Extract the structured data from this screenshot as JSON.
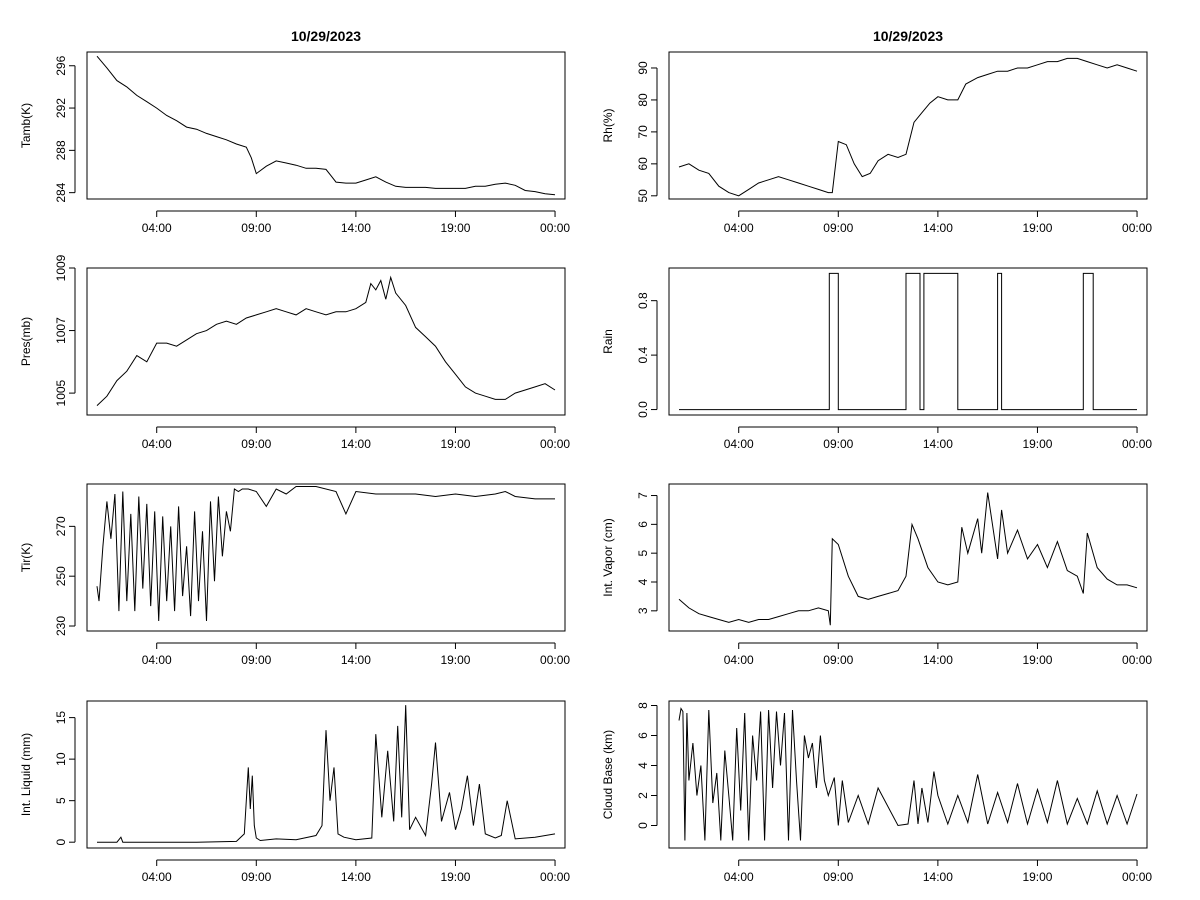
{
  "figure": {
    "titles": [
      "10/29/2023",
      "10/29/2023"
    ]
  },
  "chart_data": [
    {
      "type": "line",
      "ylabel": "Tamb(K)",
      "title": "10/29/2023",
      "xticks": [
        "04:00",
        "09:00",
        "14:00",
        "19:00",
        "00:00"
      ],
      "xtick_hours": [
        4,
        9,
        14,
        19,
        24
      ],
      "x_hours": [
        1,
        1.5,
        2,
        2.5,
        3,
        3.5,
        4,
        4.5,
        5,
        5.5,
        6,
        6.5,
        7,
        7.5,
        8,
        8.5,
        8.75,
        9,
        9.5,
        10,
        10.5,
        11,
        11.5,
        12,
        12.5,
        12.75,
        13,
        13.5,
        14,
        14.5,
        15,
        15.5,
        16,
        16.5,
        17,
        17.5,
        18,
        18.5,
        19,
        19.5,
        20,
        20.5,
        21,
        21.5,
        22,
        22.5,
        23,
        23.5,
        24
      ],
      "y": [
        296.9,
        295.8,
        294.6,
        294.0,
        293.2,
        292.6,
        292.0,
        291.3,
        290.8,
        290.2,
        290.0,
        289.6,
        289.3,
        289.0,
        288.6,
        288.3,
        287.3,
        285.8,
        286.5,
        287.0,
        286.8,
        286.6,
        286.3,
        286.3,
        286.2,
        285.6,
        285.0,
        284.9,
        284.9,
        285.2,
        285.5,
        285.0,
        284.6,
        284.5,
        284.5,
        284.5,
        284.4,
        284.4,
        284.4,
        284.4,
        284.6,
        284.6,
        284.8,
        284.9,
        284.7,
        284.2,
        284.1,
        283.9,
        283.8
      ],
      "ylim": [
        283.4,
        297.3
      ],
      "yticks": [
        284,
        288,
        292,
        296
      ]
    },
    {
      "type": "line",
      "ylabel": "Rh(%)",
      "title": "10/29/2023",
      "xticks": [
        "04:00",
        "09:00",
        "14:00",
        "19:00",
        "00:00"
      ],
      "xtick_hours": [
        4,
        9,
        14,
        19,
        24
      ],
      "x_hours": [
        1,
        1.5,
        2,
        2.5,
        3,
        3.5,
        4,
        4.5,
        5,
        5.5,
        6,
        6.5,
        7,
        7.5,
        8,
        8.5,
        8.7,
        9,
        9.4,
        9.8,
        10.2,
        10.6,
        11,
        11.5,
        12,
        12.4,
        12.8,
        13.2,
        13.6,
        14,
        14.5,
        15,
        15.4,
        16,
        16.5,
        17,
        17.5,
        18,
        18.5,
        19,
        19.5,
        20,
        20.5,
        21,
        21.5,
        22,
        22.5,
        23,
        23.5,
        24
      ],
      "y": [
        59,
        60,
        58,
        57,
        53,
        51,
        50,
        52,
        54,
        55,
        56,
        55,
        54,
        53,
        52,
        51,
        51,
        67,
        66,
        60,
        56,
        57,
        61,
        63,
        62,
        63,
        73,
        76,
        79,
        81,
        80,
        80,
        85,
        87,
        88,
        89,
        89,
        90,
        90,
        91,
        92,
        92,
        93,
        93,
        92,
        91,
        90,
        91,
        90,
        89
      ],
      "ylim": [
        49,
        95
      ],
      "yticks": [
        50,
        60,
        70,
        80,
        90
      ]
    },
    {
      "type": "line",
      "ylabel": "Pres(mb)",
      "xticks": [
        "04:00",
        "09:00",
        "14:00",
        "19:00",
        "00:00"
      ],
      "xtick_hours": [
        4,
        9,
        14,
        19,
        24
      ],
      "x_hours": [
        1,
        1.5,
        2,
        2.5,
        3,
        3.5,
        4,
        4.5,
        5,
        5.5,
        6,
        6.5,
        7,
        7.5,
        8,
        8.5,
        9,
        9.5,
        10,
        10.5,
        11,
        11.5,
        12,
        12.5,
        13,
        13.5,
        14,
        14.5,
        14.75,
        15,
        15.25,
        15.5,
        15.75,
        16,
        16.5,
        17,
        17.5,
        18,
        18.5,
        19,
        19.5,
        20,
        20.5,
        21,
        21.5,
        22,
        22.5,
        23,
        23.5,
        24
      ],
      "y": [
        1004.6,
        1004.9,
        1005.4,
        1005.7,
        1006.2,
        1006.0,
        1006.6,
        1006.6,
        1006.5,
        1006.7,
        1006.9,
        1007.0,
        1007.2,
        1007.3,
        1007.2,
        1007.4,
        1007.5,
        1007.6,
        1007.7,
        1007.6,
        1007.5,
        1007.7,
        1007.6,
        1007.5,
        1007.6,
        1007.6,
        1007.7,
        1007.9,
        1008.5,
        1008.3,
        1008.6,
        1008.0,
        1008.7,
        1008.2,
        1007.8,
        1007.1,
        1006.8,
        1006.5,
        1006.0,
        1005.6,
        1005.2,
        1005.0,
        1004.9,
        1004.8,
        1004.8,
        1005.0,
        1005.1,
        1005.2,
        1005.3,
        1005.1
      ],
      "ylim": [
        1004.3,
        1009.0
      ],
      "yticks": [
        1005,
        1007,
        1009
      ]
    },
    {
      "type": "step",
      "ylabel": "Rain",
      "xticks": [
        "04:00",
        "09:00",
        "14:00",
        "19:00",
        "00:00"
      ],
      "xtick_hours": [
        4,
        9,
        14,
        19,
        24
      ],
      "x_hours": [
        1,
        8.55,
        8.55,
        9.0,
        9.0,
        12.4,
        12.4,
        13.1,
        13.1,
        13.3,
        13.3,
        15.0,
        15.0,
        17.0,
        17.0,
        17.2,
        17.2,
        21.3,
        21.3,
        21.8,
        21.8,
        23.1,
        23.1,
        24
      ],
      "y": [
        0,
        0,
        1,
        1,
        0,
        0,
        1,
        1,
        0,
        0,
        1,
        1,
        0,
        0,
        1,
        1,
        0,
        0,
        1,
        1,
        0,
        0,
        0,
        0
      ],
      "values_note": "state 0 = no rain, 1 = rain",
      "ylim": [
        -0.04,
        1.04
      ],
      "yticks": [
        0.0,
        0.4,
        0.8
      ]
    },
    {
      "type": "line",
      "ylabel": "Tir(K)",
      "xticks": [
        "04:00",
        "09:00",
        "14:00",
        "19:00",
        "00:00"
      ],
      "xtick_hours": [
        4,
        9,
        14,
        19,
        24
      ],
      "x_hours": [
        1,
        1.1,
        1.3,
        1.5,
        1.7,
        1.9,
        2.1,
        2.3,
        2.5,
        2.7,
        2.9,
        3.1,
        3.3,
        3.5,
        3.7,
        3.9,
        4.1,
        4.3,
        4.5,
        4.7,
        4.9,
        5.1,
        5.3,
        5.5,
        5.7,
        5.9,
        6.1,
        6.3,
        6.5,
        6.7,
        6.9,
        7.1,
        7.3,
        7.5,
        7.7,
        7.9,
        8.1,
        8.3,
        8.6,
        9.0,
        9.5,
        10.0,
        10.5,
        11.0,
        12.0,
        13.0,
        13.5,
        14.0,
        15.0,
        16.0,
        17.0,
        18.0,
        19.0,
        20.0,
        21.0,
        21.5,
        22.0,
        23.0,
        24.0
      ],
      "y": [
        246,
        240,
        262,
        280,
        265,
        283,
        236,
        284,
        240,
        275,
        236,
        282,
        245,
        279,
        238,
        276,
        232,
        274,
        240,
        270,
        236,
        278,
        242,
        262,
        234,
        276,
        240,
        268,
        232,
        280,
        248,
        282,
        258,
        276,
        268,
        285,
        284,
        285,
        285,
        284,
        278,
        285,
        283,
        286,
        286,
        284,
        275,
        284,
        283,
        283,
        283,
        282,
        283,
        282,
        283,
        284,
        282,
        281,
        281
      ],
      "ylim": [
        228,
        287
      ],
      "yticks": [
        230,
        250,
        270
      ]
    },
    {
      "type": "line",
      "ylabel": "Int. Vapor (cm)",
      "xticks": [
        "04:00",
        "09:00",
        "14:00",
        "19:00",
        "00:00"
      ],
      "xtick_hours": [
        4,
        9,
        14,
        19,
        24
      ],
      "x_hours": [
        1,
        1.5,
        2,
        2.5,
        3,
        3.5,
        4,
        4.5,
        5,
        5.5,
        6,
        6.5,
        7,
        7.5,
        8,
        8.5,
        8.6,
        8.7,
        9.0,
        9.5,
        10,
        10.5,
        11,
        11.5,
        12,
        12.4,
        12.7,
        13,
        13.5,
        14,
        14.5,
        15.0,
        15.2,
        15.5,
        16.0,
        16.2,
        16.5,
        17.0,
        17.2,
        17.5,
        18,
        18.5,
        19,
        19.5,
        20,
        20.5,
        21,
        21.3,
        21.5,
        22,
        22.5,
        23,
        23.5,
        24
      ],
      "y": [
        3.4,
        3.1,
        2.9,
        2.8,
        2.7,
        2.6,
        2.7,
        2.6,
        2.7,
        2.7,
        2.8,
        2.9,
        3.0,
        3.0,
        3.1,
        3.0,
        2.5,
        5.5,
        5.3,
        4.2,
        3.5,
        3.4,
        3.5,
        3.6,
        3.7,
        4.2,
        6.0,
        5.5,
        4.5,
        4.0,
        3.9,
        4.0,
        5.9,
        5.0,
        6.2,
        5.0,
        7.1,
        4.8,
        6.5,
        5.0,
        5.8,
        4.8,
        5.3,
        4.5,
        5.4,
        4.4,
        4.2,
        3.6,
        5.7,
        4.5,
        4.1,
        3.9,
        3.9,
        3.8
      ],
      "ylim": [
        2.3,
        7.4
      ],
      "yticks": [
        3,
        4,
        5,
        6,
        7
      ]
    },
    {
      "type": "line",
      "ylabel": "Int. Liquid (mm)",
      "xticks": [
        "04:00",
        "09:00",
        "14:00",
        "19:00",
        "00:00"
      ],
      "xtick_hours": [
        4,
        9,
        14,
        19,
        24
      ],
      "x_hours": [
        1,
        2,
        2.2,
        2.3,
        2.5,
        4,
        6,
        8,
        8.4,
        8.6,
        8.7,
        8.8,
        8.9,
        9.0,
        9.2,
        10,
        11,
        12,
        12.3,
        12.5,
        12.7,
        12.9,
        13.1,
        13.4,
        14.0,
        14.8,
        15.0,
        15.3,
        15.6,
        15.9,
        16.1,
        16.3,
        16.5,
        16.7,
        17.0,
        17.5,
        17.8,
        18.0,
        18.3,
        18.7,
        19.0,
        19.3,
        19.6,
        19.9,
        20.2,
        20.5,
        21.0,
        21.3,
        21.6,
        22.0,
        23.0,
        24.0
      ],
      "y": [
        0,
        0,
        0.6,
        0,
        0,
        0,
        0,
        0.1,
        1.0,
        9.0,
        4.0,
        8.0,
        2.0,
        0.5,
        0.2,
        0.4,
        0.3,
        0.8,
        2.0,
        13.5,
        5.0,
        9.0,
        1.0,
        0.6,
        0.3,
        0.5,
        13.0,
        3.0,
        11.0,
        2.5,
        14.0,
        3.0,
        16.5,
        1.5,
        3.0,
        0.8,
        7.0,
        12.0,
        2.5,
        6.0,
        1.5,
        4.0,
        8.0,
        2.0,
        7.0,
        1.0,
        0.5,
        0.8,
        5.0,
        0.4,
        0.6,
        1.0
      ],
      "ylim": [
        -0.7,
        17.0
      ],
      "yticks": [
        0,
        5,
        10,
        15
      ]
    },
    {
      "type": "line",
      "ylabel": "Cloud Base (km)",
      "xticks": [
        "04:00",
        "09:00",
        "14:00",
        "19:00",
        "00:00"
      ],
      "xtick_hours": [
        4,
        9,
        14,
        19,
        24
      ],
      "x_hours": [
        1,
        1.1,
        1.2,
        1.3,
        1.4,
        1.5,
        1.7,
        1.9,
        2.1,
        2.3,
        2.5,
        2.7,
        2.9,
        3.1,
        3.3,
        3.5,
        3.7,
        3.9,
        4.1,
        4.3,
        4.5,
        4.7,
        4.9,
        5.1,
        5.3,
        5.5,
        5.7,
        5.9,
        6.1,
        6.3,
        6.5,
        6.7,
        6.9,
        7.1,
        7.3,
        7.5,
        7.7,
        7.9,
        8.1,
        8.3,
        8.5,
        8.8,
        9.0,
        9.2,
        9.5,
        10.0,
        10.5,
        11.0,
        12.0,
        12.5,
        12.8,
        13.0,
        13.2,
        13.5,
        13.8,
        14.0,
        14.5,
        15.0,
        15.5,
        16.0,
        16.5,
        17.0,
        17.5,
        18.0,
        18.5,
        19.0,
        19.5,
        20.0,
        20.5,
        21.0,
        21.5,
        22.0,
        22.5,
        23.0,
        23.5,
        24.0
      ],
      "y": [
        7.0,
        7.8,
        7.6,
        -1.0,
        7.5,
        3.0,
        5.5,
        2.0,
        4.0,
        -1.0,
        7.7,
        1.5,
        3.5,
        -1.0,
        5.0,
        2.0,
        -1.0,
        6.5,
        1.0,
        7.5,
        -1.0,
        6.0,
        3.0,
        7.6,
        -1.0,
        7.7,
        2.5,
        7.6,
        4.0,
        7.5,
        -1.0,
        7.7,
        3.0,
        -1.0,
        6.0,
        4.5,
        5.5,
        2.5,
        6.0,
        3.0,
        2.0,
        3.2,
        0.0,
        3.0,
        0.2,
        2.0,
        0.1,
        2.5,
        0.0,
        0.1,
        3.0,
        0.1,
        2.5,
        0.2,
        3.6,
        2.0,
        0.1,
        2.0,
        0.2,
        3.4,
        0.1,
        2.2,
        0.2,
        2.8,
        0.1,
        2.4,
        0.2,
        3.0,
        0.1,
        1.8,
        0.1,
        2.3,
        0.1,
        2.0,
        0.1,
        2.1
      ],
      "ylim": [
        -1.5,
        8.3
      ],
      "yticks": [
        0,
        2,
        4,
        6,
        8
      ]
    }
  ]
}
